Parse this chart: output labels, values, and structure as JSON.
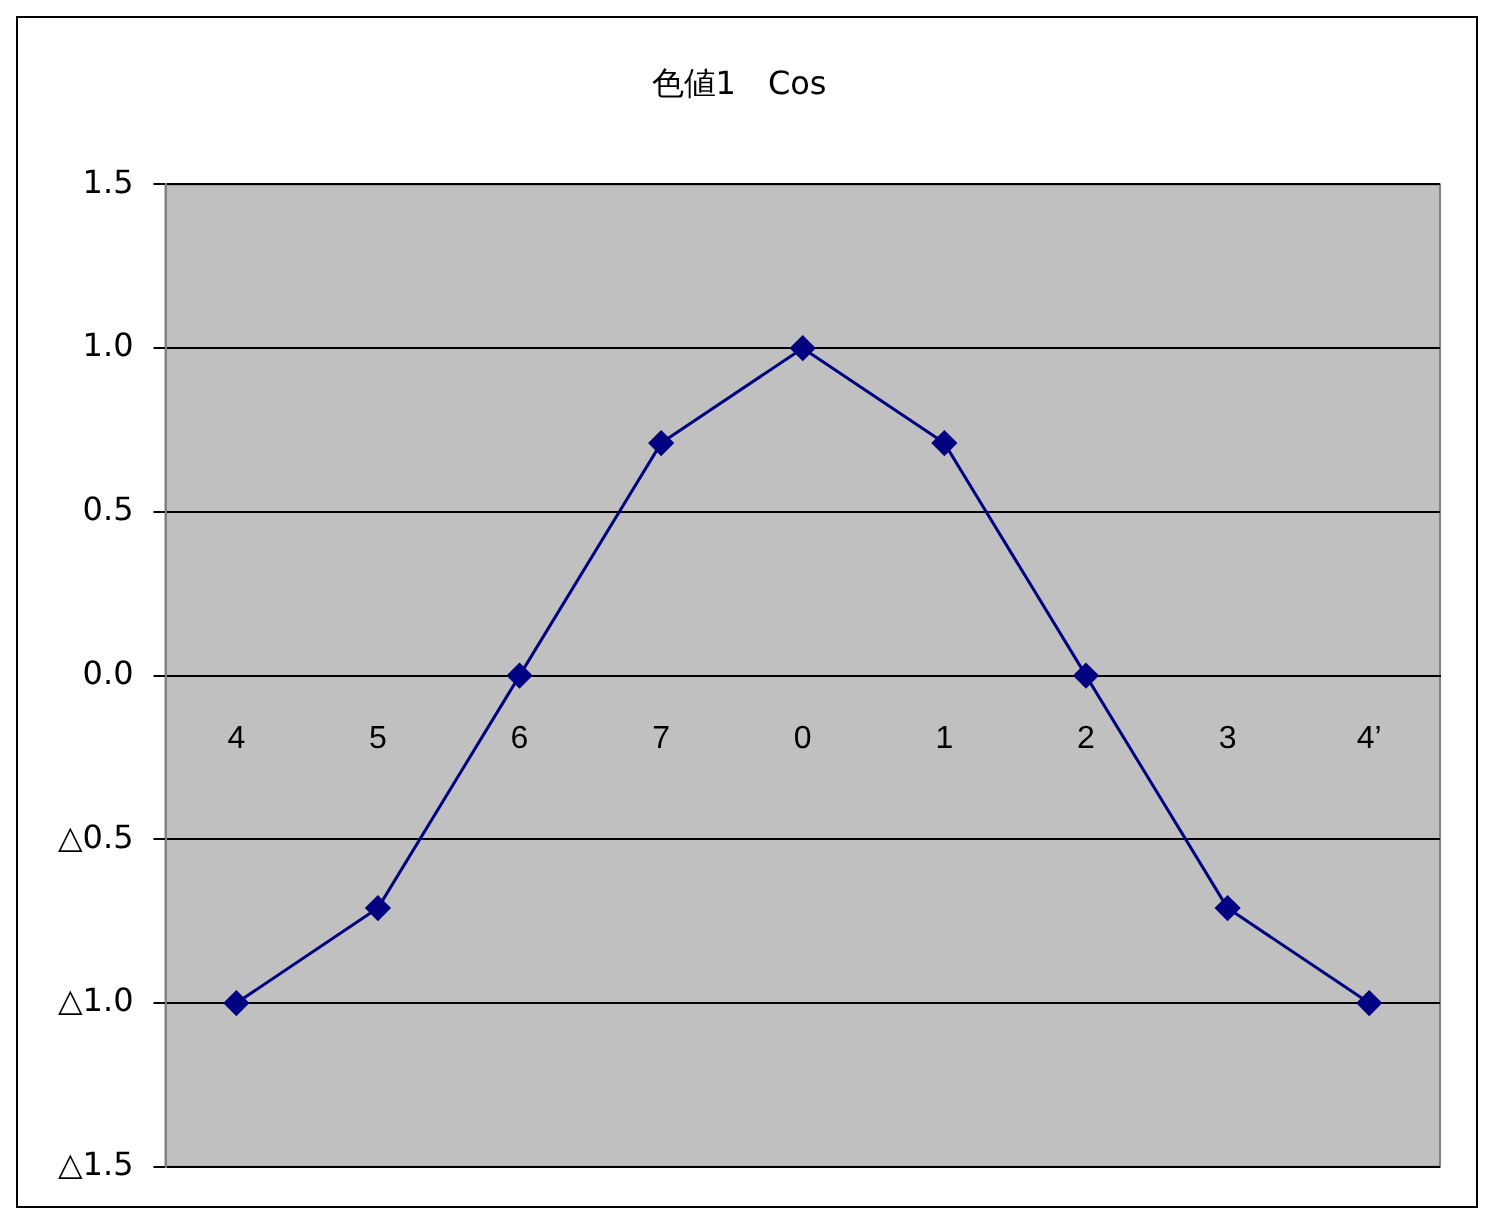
{
  "chart_data": {
    "type": "line",
    "title": "色値1　Cos",
    "categories": [
      "4",
      "5",
      "6",
      "7",
      "0",
      "1",
      "2",
      "3",
      "4’"
    ],
    "series": [
      {
        "color": "#000080",
        "values": [
          -1,
          -0.71,
          0,
          0.71,
          1,
          0.71,
          0,
          -0.71,
          -1
        ]
      }
    ],
    "ylim": [
      -1.5,
      1.5
    ],
    "yticks": [
      {
        "value": -1.5,
        "label": "△1.5"
      },
      {
        "value": -1,
        "label": "△1.0"
      },
      {
        "value": -0.5,
        "label": "△0.5"
      },
      {
        "value": 0,
        "label": "0.0"
      },
      {
        "value": 0.5,
        "label": "0.5"
      },
      {
        "value": 1,
        "label": "1.0"
      },
      {
        "value": 1.5,
        "label": "1.5"
      }
    ],
    "grid": "y",
    "legend": false,
    "marker": "diamond",
    "line_style": "solid"
  }
}
